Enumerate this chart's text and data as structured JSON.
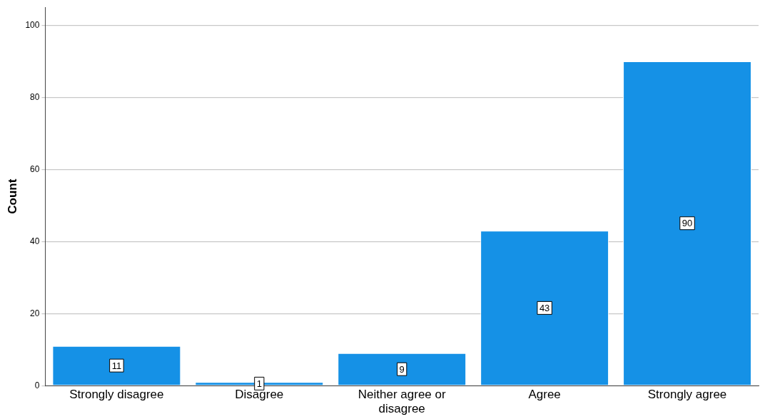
{
  "chart_data": {
    "type": "bar",
    "ylabel": "Count",
    "categories": [
      "Strongly disagree",
      "Disagree",
      "Neither agree or disagree",
      "Agree",
      "Strongly agree"
    ],
    "values": [
      11,
      1,
      9,
      43,
      90
    ],
    "color": "#1591e6",
    "ylim": [
      0,
      105
    ],
    "yticks": [
      0,
      20,
      40,
      60,
      80,
      100
    ],
    "grid": "y",
    "data_labels": true,
    "legend": false
  }
}
